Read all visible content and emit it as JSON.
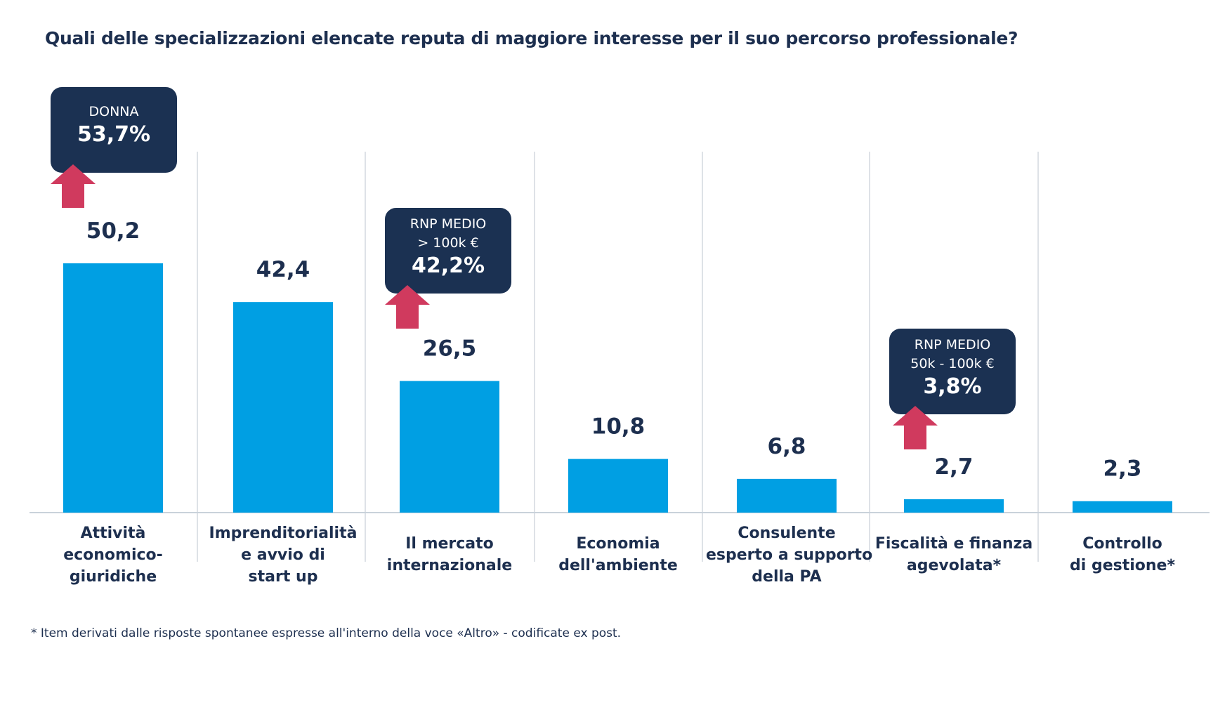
{
  "chart_data": {
    "type": "bar",
    "title": "Quali delle specializzazioni elencate reputa di maggiore interesse per il suo percorso professionale?",
    "categories": [
      [
        "Attività",
        "economico-",
        "giuridiche"
      ],
      [
        "Imprenditorialità",
        "e avvio di",
        "start up"
      ],
      [
        "Il mercato",
        "internazionale"
      ],
      [
        "Economia",
        "dell'ambiente"
      ],
      [
        "Consulente",
        "esperto a supporto",
        "della PA"
      ],
      [
        "Fiscalità e finanza",
        "agevolata*"
      ],
      [
        "Controllo",
        "di gestione*"
      ]
    ],
    "values": [
      50.2,
      42.4,
      26.5,
      10.8,
      6.8,
      2.7,
      2.3
    ],
    "value_labels": [
      "50,2",
      "42,4",
      "26,5",
      "10,8",
      "6,8",
      "2,7",
      "2,3"
    ],
    "ylim": [
      0,
      50.2
    ],
    "grid": false,
    "bar_color": "#009fe3",
    "callout_color": "#1b3152",
    "arrow_color": "#d03a5e",
    "callouts": [
      {
        "category_index": 0,
        "line1": "DONNA",
        "line2": "",
        "value": "53,7%"
      },
      {
        "category_index": 2,
        "line1": "RNP MEDIO",
        "line2": "> 100k €",
        "value": "42,2%"
      },
      {
        "category_index": 5,
        "line1": "RNP MEDIO",
        "line2": "50k - 100k €",
        "value": "3,8%"
      }
    ],
    "footnote": "* Item derivati dalle risposte spontanee espresse all'interno della voce «Altro» - codificate ex post."
  }
}
